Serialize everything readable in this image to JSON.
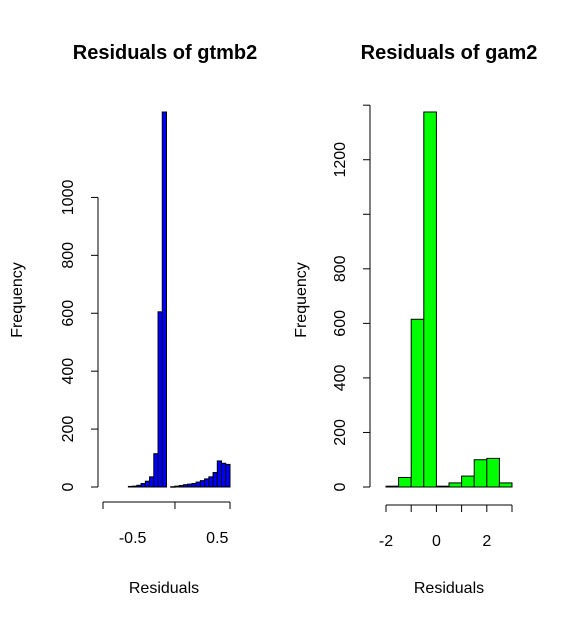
{
  "chart_data": [
    {
      "type": "bar",
      "title": "Residuals of gtmb2",
      "xlabel": "Residuals",
      "ylabel": "Frequency",
      "color": "#0000ff",
      "bin_edges": [
        -0.85,
        -0.8,
        -0.75,
        -0.7,
        -0.65,
        -0.6,
        -0.55,
        -0.5,
        -0.45,
        -0.4,
        -0.35,
        -0.3,
        -0.25,
        -0.2,
        -0.15,
        -0.1,
        -0.05,
        0.0,
        0.05,
        0.1,
        0.15,
        0.2,
        0.25,
        0.3,
        0.35,
        0.4,
        0.45,
        0.5,
        0.55,
        0.6,
        0.65
      ],
      "values": [
        0,
        0,
        0,
        0,
        0,
        0,
        2,
        3,
        6,
        12,
        20,
        35,
        115,
        605,
        1295,
        0,
        1,
        3,
        5,
        8,
        10,
        12,
        17,
        22,
        28,
        35,
        50,
        90,
        82,
        78
      ],
      "xlim": [
        -0.85,
        0.65
      ],
      "xticks": [
        -0.5,
        0.5
      ],
      "xtick_labels": [
        "-0.5",
        "0.5"
      ],
      "ylim": [
        0,
        1200
      ],
      "yticks": [
        0,
        200,
        400,
        600,
        800,
        1000
      ],
      "ytick_labels": [
        "0",
        "200",
        "400",
        "600",
        "800",
        "1000"
      ]
    },
    {
      "type": "bar",
      "title": "Residuals of gam2",
      "xlabel": "Residuals",
      "ylabel": "Frequency",
      "color": "#00ff00",
      "bin_edges": [
        -2.0,
        -1.5,
        -1.0,
        -0.5,
        0.0,
        0.5,
        1.0,
        1.5,
        2.0,
        2.5,
        3.0
      ],
      "values": [
        3,
        35,
        615,
        1375,
        3,
        15,
        40,
        100,
        105,
        15
      ],
      "xlim": [
        -2.0,
        3.0
      ],
      "xticks": [
        -2,
        -1,
        0,
        1,
        2,
        3
      ],
      "xtick_labels": [
        "-2",
        "",
        "0",
        "",
        "2",
        ""
      ],
      "ylim": [
        0,
        1400
      ],
      "yticks": [
        0,
        200,
        400,
        600,
        800,
        1000,
        1200,
        1400
      ],
      "ytick_labels": [
        "0",
        "200",
        "400",
        "600",
        "800",
        "",
        "1200",
        ""
      ]
    }
  ]
}
